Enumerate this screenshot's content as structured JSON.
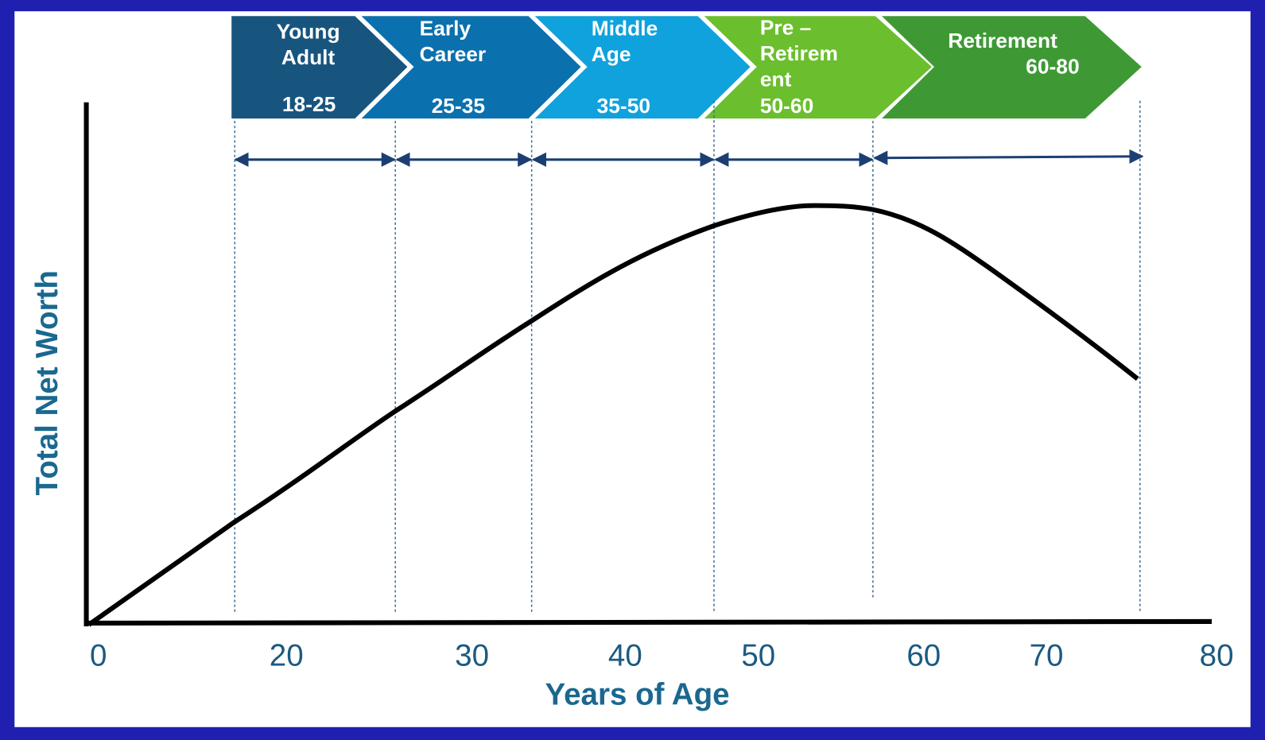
{
  "stages": [
    {
      "lines": [
        "Young",
        "Adult"
      ],
      "range": "18-25"
    },
    {
      "lines": [
        "Early",
        "Career"
      ],
      "range": "25-35"
    },
    {
      "lines": [
        "Middle",
        "Age"
      ],
      "range": "35-50"
    },
    {
      "lines": [
        "Pre      –",
        "Retirem",
        "ent"
      ],
      "range": "50-60"
    },
    {
      "lines": [
        "Retirement"
      ],
      "range": "60-80"
    }
  ],
  "x_axis": {
    "label": "Years of Age",
    "ticks": [
      0,
      20,
      30,
      40,
      50,
      60,
      70,
      80
    ]
  },
  "y_axis": {
    "label": "Total Net Worth"
  }
}
